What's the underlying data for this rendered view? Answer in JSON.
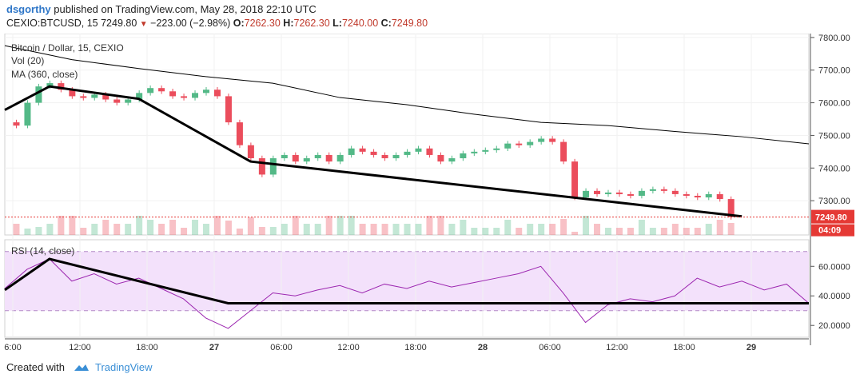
{
  "header": {
    "user": "dsgorthy",
    "published": "published on TradingView.com, May 28, 2018 22:10 UTC",
    "symbol": "CEXIO:BTCUSD, 15",
    "last": "7249.80",
    "change": "−223.00 (−2.98%)",
    "o_label": "O:",
    "o": "7262.30",
    "h_label": "H:",
    "h": "7262.30",
    "l_label": "L:",
    "l": "7240.00",
    "c_label": "C:",
    "c": "7249.80"
  },
  "legend": {
    "title": "Bitcoin / Dollar, 15, CEXIO",
    "vol": "Vol (20)",
    "ma": "MA (360, close)",
    "rsi": "RSI (14, close)"
  },
  "footer": {
    "created": "Created with",
    "brand": "TradingView"
  },
  "colors": {
    "up": "#53b987",
    "down": "#eb4d5c",
    "ma": "#000000",
    "rsi": "#9c27b0",
    "rsi_band": "#f3e1fb",
    "last": "#e53935"
  },
  "chart_data": [
    {
      "type": "line",
      "title": "Bitcoin / Dollar, 15, CEXIO",
      "x_ticks": [
        "6:00",
        "12:00",
        "18:00",
        "27",
        "06:00",
        "12:00",
        "18:00",
        "28",
        "06:00",
        "12:00",
        "18:00",
        "29"
      ],
      "y_ticks": [
        "7800.00",
        "7700.00",
        "7600.00",
        "7500.00",
        "7400.00",
        "7300.00"
      ],
      "ylim": [
        7195,
        7812
      ],
      "last_price_label": "7249.80",
      "countdown_label": "04:09",
      "price_series": [
        [
          0,
          7540
        ],
        [
          1,
          7530
        ],
        [
          2,
          7600
        ],
        [
          3,
          7650
        ],
        [
          4,
          7660
        ],
        [
          5,
          7640
        ],
        [
          6,
          7620
        ],
        [
          7,
          7615
        ],
        [
          8,
          7625
        ],
        [
          9,
          7610
        ],
        [
          10,
          7600
        ],
        [
          11,
          7610
        ],
        [
          12,
          7630
        ],
        [
          13,
          7645
        ],
        [
          14,
          7635
        ],
        [
          15,
          7620
        ],
        [
          16,
          7615
        ],
        [
          17,
          7630
        ],
        [
          18,
          7640
        ],
        [
          19,
          7620
        ],
        [
          20,
          7540
        ],
        [
          21,
          7470
        ],
        [
          22,
          7430
        ],
        [
          23,
          7380
        ],
        [
          24,
          7430
        ],
        [
          25,
          7440
        ],
        [
          26,
          7420
        ],
        [
          27,
          7430
        ],
        [
          28,
          7440
        ],
        [
          29,
          7420
        ],
        [
          30,
          7440
        ],
        [
          31,
          7460
        ],
        [
          32,
          7450
        ],
        [
          33,
          7440
        ],
        [
          34,
          7430
        ],
        [
          35,
          7440
        ],
        [
          36,
          7450
        ],
        [
          37,
          7460
        ],
        [
          38,
          7440
        ],
        [
          39,
          7420
        ],
        [
          40,
          7430
        ],
        [
          41,
          7445
        ],
        [
          42,
          7450
        ],
        [
          43,
          7455
        ],
        [
          44,
          7460
        ],
        [
          45,
          7475
        ],
        [
          46,
          7470
        ],
        [
          47,
          7480
        ],
        [
          48,
          7490
        ],
        [
          49,
          7480
        ],
        [
          50,
          7420
        ],
        [
          51,
          7310
        ],
        [
          52,
          7330
        ],
        [
          53,
          7320
        ],
        [
          54,
          7325
        ],
        [
          55,
          7320
        ],
        [
          56,
          7315
        ],
        [
          57,
          7330
        ],
        [
          58,
          7335
        ],
        [
          59,
          7330
        ],
        [
          60,
          7320
        ],
        [
          61,
          7315
        ],
        [
          62,
          7310
        ],
        [
          63,
          7320
        ],
        [
          64,
          7305
        ],
        [
          65,
          7250
        ]
      ],
      "ma_series": [
        [
          0,
          7775
        ],
        [
          6,
          7732
        ],
        [
          12,
          7705
        ],
        [
          18,
          7680
        ],
        [
          24,
          7660
        ],
        [
          30,
          7616
        ],
        [
          36,
          7594
        ],
        [
          42,
          7565
        ],
        [
          48,
          7540
        ],
        [
          54,
          7530
        ],
        [
          60,
          7512
        ],
        [
          66,
          7496
        ],
        [
          72,
          7474
        ]
      ],
      "trendlines": [
        [
          [
            0,
            7578
          ],
          [
            4,
            7650
          ],
          [
            12,
            7612
          ],
          [
            22,
            7420
          ],
          [
            66,
            7252
          ]
        ]
      ]
    },
    {
      "type": "line",
      "title": "RSI (14, close)",
      "y_ticks": [
        "60.0000",
        "40.0000",
        "20.0000"
      ],
      "ylim": [
        12,
        78
      ],
      "bands": [
        30,
        70
      ],
      "rsi_series": [
        [
          0,
          45
        ],
        [
          2,
          58
        ],
        [
          4,
          65
        ],
        [
          6,
          50
        ],
        [
          8,
          55
        ],
        [
          10,
          48
        ],
        [
          12,
          52
        ],
        [
          14,
          45
        ],
        [
          16,
          38
        ],
        [
          18,
          25
        ],
        [
          20,
          18
        ],
        [
          22,
          30
        ],
        [
          24,
          42
        ],
        [
          26,
          40
        ],
        [
          28,
          44
        ],
        [
          30,
          47
        ],
        [
          32,
          42
        ],
        [
          34,
          48
        ],
        [
          36,
          45
        ],
        [
          38,
          50
        ],
        [
          40,
          46
        ],
        [
          42,
          49
        ],
        [
          44,
          52
        ],
        [
          46,
          55
        ],
        [
          48,
          60
        ],
        [
          50,
          42
        ],
        [
          52,
          22
        ],
        [
          54,
          34
        ],
        [
          56,
          38
        ],
        [
          58,
          36
        ],
        [
          60,
          40
        ],
        [
          62,
          52
        ],
        [
          64,
          46
        ],
        [
          66,
          50
        ],
        [
          68,
          44
        ],
        [
          70,
          48
        ],
        [
          72,
          35
        ]
      ],
      "trendlines": [
        [
          [
            0,
            44
          ],
          [
            4,
            65
          ],
          [
            20,
            35
          ],
          [
            72,
            35
          ]
        ]
      ]
    }
  ]
}
